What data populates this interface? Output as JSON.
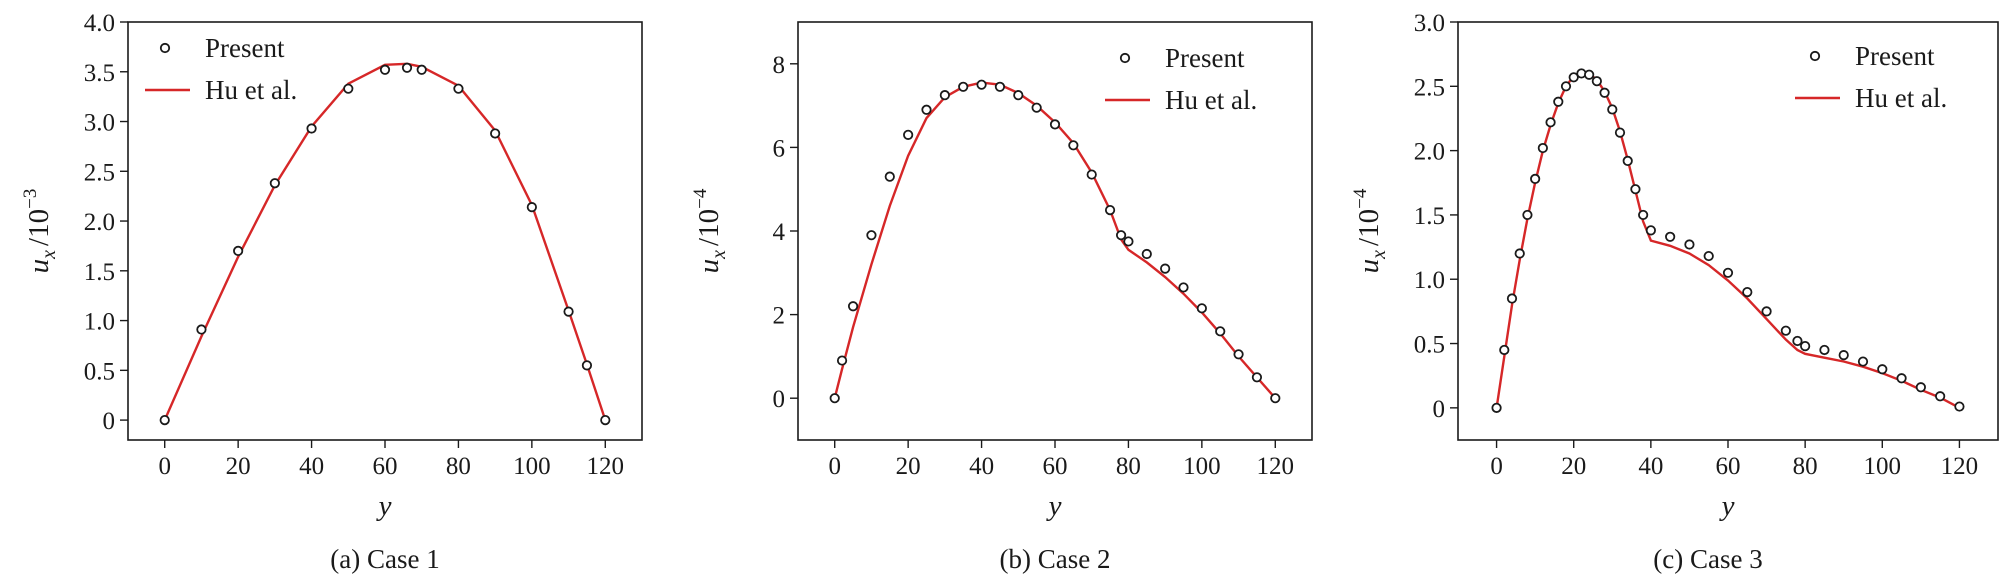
{
  "chart_data": [
    {
      "type": "scatter",
      "caption": "(a) Case 1",
      "xlabel": "y",
      "ylabel": "u",
      "ylabel_sub": "x",
      "ylabel_unit": "/10",
      "ylabel_exp": "−3",
      "xlim": [
        -10,
        130
      ],
      "ylim": [
        -0.2,
        4.0
      ],
      "xticks": [
        0,
        20,
        40,
        60,
        80,
        100,
        120
      ],
      "xtick_labels": [
        "0",
        "20",
        "40",
        "60",
        "80",
        "100",
        "120"
      ],
      "yticks": [
        0,
        0.5,
        1.0,
        1.5,
        2.0,
        2.5,
        3.0,
        3.5,
        4.0
      ],
      "ytick_labels": [
        "0",
        "0.5",
        "1.0",
        "1.5",
        "2.0",
        "2.5",
        "3.0",
        "3.5",
        "4.0"
      ],
      "legend_position": "top-left",
      "series": [
        {
          "name": "Present",
          "style": "markers",
          "color": "#1a1a1a",
          "x": [
            0,
            10,
            20,
            30,
            40,
            50,
            60,
            66,
            70,
            80,
            90,
            100,
            110,
            115,
            120
          ],
          "y": [
            0,
            0.91,
            1.7,
            2.38,
            2.93,
            3.33,
            3.52,
            3.54,
            3.52,
            3.33,
            2.88,
            2.14,
            1.09,
            0.55,
            0
          ]
        },
        {
          "name": "Hu et al.",
          "style": "line",
          "color": "#d62728",
          "x": [
            0,
            10,
            20,
            30,
            40,
            50,
            60,
            66,
            70,
            80,
            90,
            100,
            110,
            115,
            120
          ],
          "y": [
            0,
            0.84,
            1.64,
            2.36,
            2.95,
            3.38,
            3.57,
            3.58,
            3.55,
            3.36,
            2.91,
            2.16,
            1.1,
            0.56,
            0
          ]
        }
      ]
    },
    {
      "type": "scatter",
      "caption": "(b) Case 2",
      "xlabel": "y",
      "ylabel": "u",
      "ylabel_sub": "x",
      "ylabel_unit": "/10",
      "ylabel_exp": "−4",
      "xlim": [
        -10,
        130
      ],
      "ylim": [
        -1.0,
        9.0
      ],
      "xticks": [
        0,
        20,
        40,
        60,
        80,
        100,
        120
      ],
      "xtick_labels": [
        "0",
        "20",
        "40",
        "60",
        "80",
        "100",
        "120"
      ],
      "yticks": [
        0,
        2,
        4,
        6,
        8
      ],
      "ytick_labels": [
        "0",
        "2",
        "4",
        "6",
        "8"
      ],
      "legend_position": "top-right",
      "series": [
        {
          "name": "Present",
          "style": "markers",
          "color": "#1a1a1a",
          "x": [
            0,
            2,
            5,
            10,
            15,
            20,
            25,
            30,
            35,
            40,
            45,
            50,
            55,
            60,
            65,
            70,
            75,
            78,
            80,
            85,
            90,
            95,
            100,
            105,
            110,
            115,
            120
          ],
          "y": [
            0,
            0.9,
            2.2,
            3.9,
            5.3,
            6.3,
            6.9,
            7.25,
            7.45,
            7.5,
            7.45,
            7.25,
            6.95,
            6.55,
            6.05,
            5.35,
            4.5,
            3.9,
            3.75,
            3.45,
            3.1,
            2.65,
            2.15,
            1.6,
            1.05,
            0.5,
            0
          ]
        },
        {
          "name": "Hu et al.",
          "style": "line",
          "color": "#d62728",
          "x": [
            0,
            2,
            5,
            10,
            15,
            20,
            25,
            30,
            35,
            40,
            45,
            50,
            55,
            60,
            65,
            70,
            75,
            78,
            80,
            85,
            90,
            95,
            100,
            105,
            110,
            115,
            120
          ],
          "y": [
            0,
            0.7,
            1.7,
            3.2,
            4.6,
            5.8,
            6.7,
            7.2,
            7.45,
            7.55,
            7.5,
            7.3,
            7.0,
            6.6,
            6.1,
            5.4,
            4.5,
            3.8,
            3.55,
            3.25,
            2.9,
            2.5,
            2.05,
            1.55,
            1.0,
            0.5,
            0
          ]
        }
      ]
    },
    {
      "type": "scatter",
      "caption": "(c) Case 3",
      "xlabel": "y",
      "ylabel": "u",
      "ylabel_sub": "x",
      "ylabel_unit": "/10",
      "ylabel_exp": "−4",
      "xlim": [
        -10,
        130
      ],
      "ylim": [
        -0.25,
        3.0
      ],
      "xticks": [
        0,
        20,
        40,
        60,
        80,
        100,
        120
      ],
      "xtick_labels": [
        "0",
        "20",
        "40",
        "60",
        "80",
        "100",
        "120"
      ],
      "yticks": [
        0,
        0.5,
        1.0,
        1.5,
        2.0,
        2.5,
        3.0
      ],
      "ytick_labels": [
        "0",
        "0.5",
        "1.0",
        "1.5",
        "2.0",
        "2.5",
        "3.0"
      ],
      "legend_position": "top-right",
      "series": [
        {
          "name": "Present",
          "style": "markers",
          "color": "#1a1a1a",
          "x": [
            0,
            2,
            4,
            6,
            8,
            10,
            12,
            14,
            16,
            18,
            20,
            22,
            24,
            26,
            28,
            30,
            32,
            34,
            36,
            38,
            40,
            45,
            50,
            55,
            60,
            65,
            70,
            75,
            78,
            80,
            85,
            90,
            95,
            100,
            105,
            110,
            115,
            120
          ],
          "y": [
            0,
            0.45,
            0.85,
            1.2,
            1.5,
            1.78,
            2.02,
            2.22,
            2.38,
            2.5,
            2.57,
            2.6,
            2.59,
            2.54,
            2.45,
            2.32,
            2.14,
            1.92,
            1.7,
            1.5,
            1.38,
            1.33,
            1.27,
            1.18,
            1.05,
            0.9,
            0.75,
            0.6,
            0.52,
            0.48,
            0.45,
            0.41,
            0.36,
            0.3,
            0.23,
            0.16,
            0.09,
            0.01
          ]
        },
        {
          "name": "Hu et al.",
          "style": "line",
          "color": "#d62728",
          "x": [
            0,
            2,
            4,
            6,
            8,
            10,
            12,
            14,
            16,
            18,
            20,
            22,
            24,
            26,
            28,
            30,
            32,
            34,
            36,
            38,
            40,
            45,
            50,
            55,
            60,
            65,
            70,
            75,
            78,
            80,
            85,
            90,
            95,
            100,
            105,
            110,
            115,
            120
          ],
          "y": [
            0,
            0.4,
            0.8,
            1.15,
            1.47,
            1.75,
            2.0,
            2.2,
            2.37,
            2.5,
            2.58,
            2.61,
            2.6,
            2.55,
            2.46,
            2.33,
            2.15,
            1.93,
            1.69,
            1.45,
            1.3,
            1.26,
            1.2,
            1.11,
            0.99,
            0.85,
            0.69,
            0.53,
            0.45,
            0.42,
            0.39,
            0.36,
            0.32,
            0.27,
            0.21,
            0.14,
            0.08,
            0.0
          ]
        }
      ]
    }
  ]
}
